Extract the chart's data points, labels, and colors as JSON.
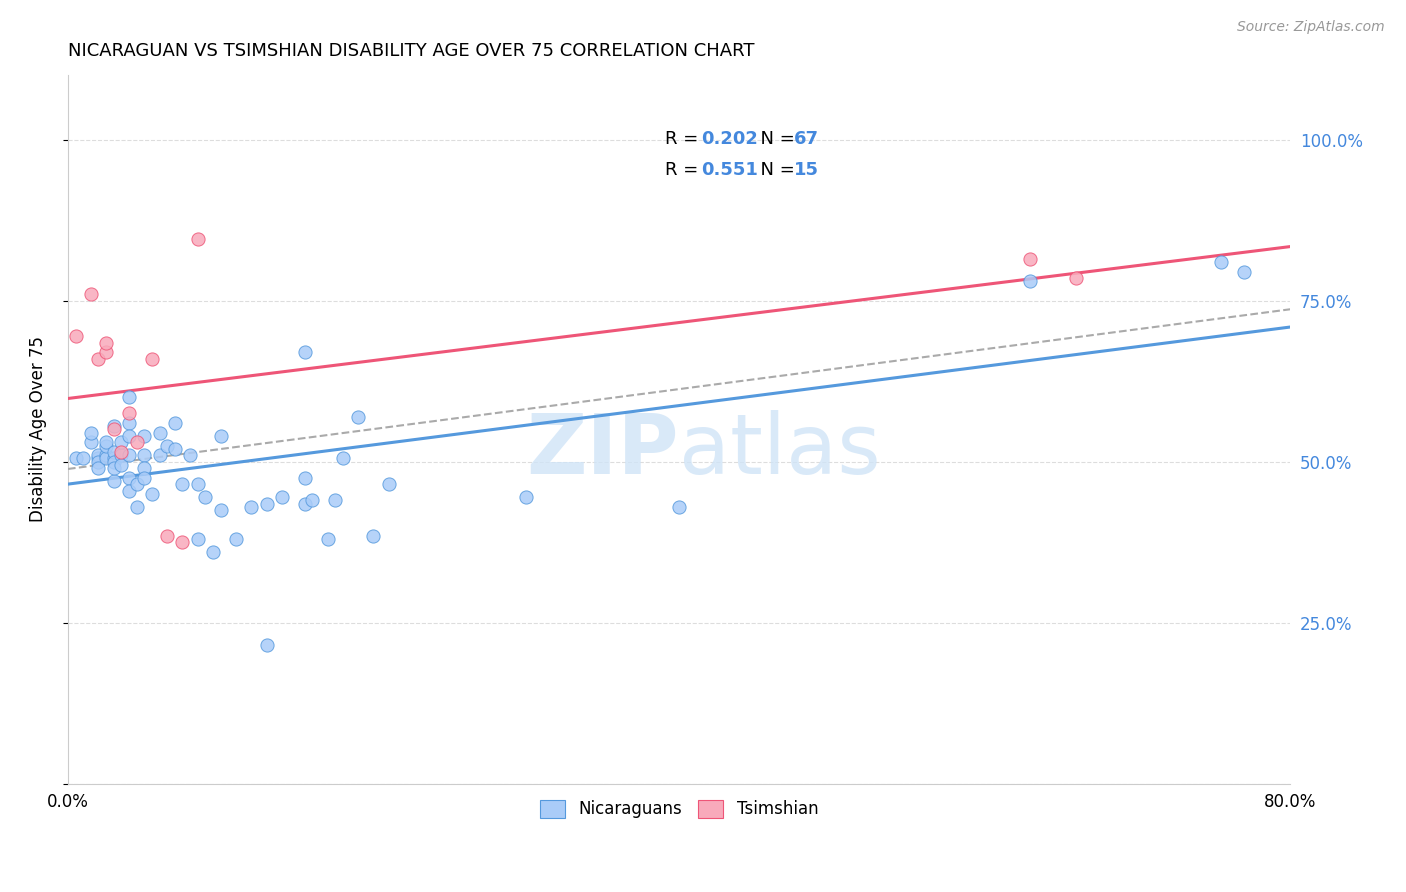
{
  "title": "NICARAGUAN VS TSIMSHIAN DISABILITY AGE OVER 75 CORRELATION CHART",
  "source": "Source: ZipAtlas.com",
  "ylabel": "Disability Age Over 75",
  "xlim": [
    0.0,
    0.8
  ],
  "ylim": [
    0.0,
    1.1
  ],
  "legend_R1": "0.202",
  "legend_N1": "67",
  "legend_R2": "0.551",
  "legend_N2": "15",
  "nicaraguan_color": "#aaccf8",
  "tsimshian_color": "#f8aabb",
  "line1_color": "#5599dd",
  "line2_color": "#ee5577",
  "watermark_color": "#d0e4f7",
  "background_color": "#ffffff",
  "grid_color": "#dddddd",
  "right_tick_color": "#4488dd",
  "nicaraguan_x": [
    0.005,
    0.01,
    0.015,
    0.015,
    0.02,
    0.02,
    0.02,
    0.02,
    0.025,
    0.025,
    0.025,
    0.025,
    0.03,
    0.03,
    0.03,
    0.03,
    0.03,
    0.03,
    0.035,
    0.035,
    0.035,
    0.04,
    0.04,
    0.04,
    0.04,
    0.04,
    0.04,
    0.045,
    0.045,
    0.05,
    0.05,
    0.05,
    0.05,
    0.055,
    0.06,
    0.06,
    0.065,
    0.07,
    0.07,
    0.075,
    0.08,
    0.085,
    0.09,
    0.1,
    0.1,
    0.11,
    0.12,
    0.13,
    0.14,
    0.155,
    0.17,
    0.175,
    0.2,
    0.21,
    0.155,
    0.16,
    0.18,
    0.19,
    0.3,
    0.155,
    0.4,
    0.63,
    0.755,
    0.77,
    0.13,
    0.095,
    0.085
  ],
  "nicaraguan_y": [
    0.505,
    0.505,
    0.53,
    0.545,
    0.505,
    0.51,
    0.5,
    0.49,
    0.51,
    0.505,
    0.525,
    0.53,
    0.505,
    0.515,
    0.555,
    0.5,
    0.47,
    0.49,
    0.51,
    0.495,
    0.53,
    0.56,
    0.6,
    0.54,
    0.51,
    0.475,
    0.455,
    0.43,
    0.465,
    0.51,
    0.54,
    0.49,
    0.475,
    0.45,
    0.545,
    0.51,
    0.525,
    0.56,
    0.52,
    0.465,
    0.51,
    0.465,
    0.445,
    0.54,
    0.425,
    0.38,
    0.43,
    0.435,
    0.445,
    0.435,
    0.38,
    0.44,
    0.385,
    0.465,
    0.475,
    0.44,
    0.505,
    0.57,
    0.445,
    0.67,
    0.43,
    0.78,
    0.81,
    0.795,
    0.215,
    0.36,
    0.38
  ],
  "tsimshian_x": [
    0.005,
    0.015,
    0.02,
    0.025,
    0.025,
    0.03,
    0.035,
    0.04,
    0.045,
    0.055,
    0.065,
    0.075,
    0.085,
    0.63,
    0.66
  ],
  "tsimshian_y": [
    0.695,
    0.76,
    0.66,
    0.67,
    0.685,
    0.55,
    0.515,
    0.575,
    0.53,
    0.66,
    0.385,
    0.375,
    0.845,
    0.815,
    0.785
  ]
}
